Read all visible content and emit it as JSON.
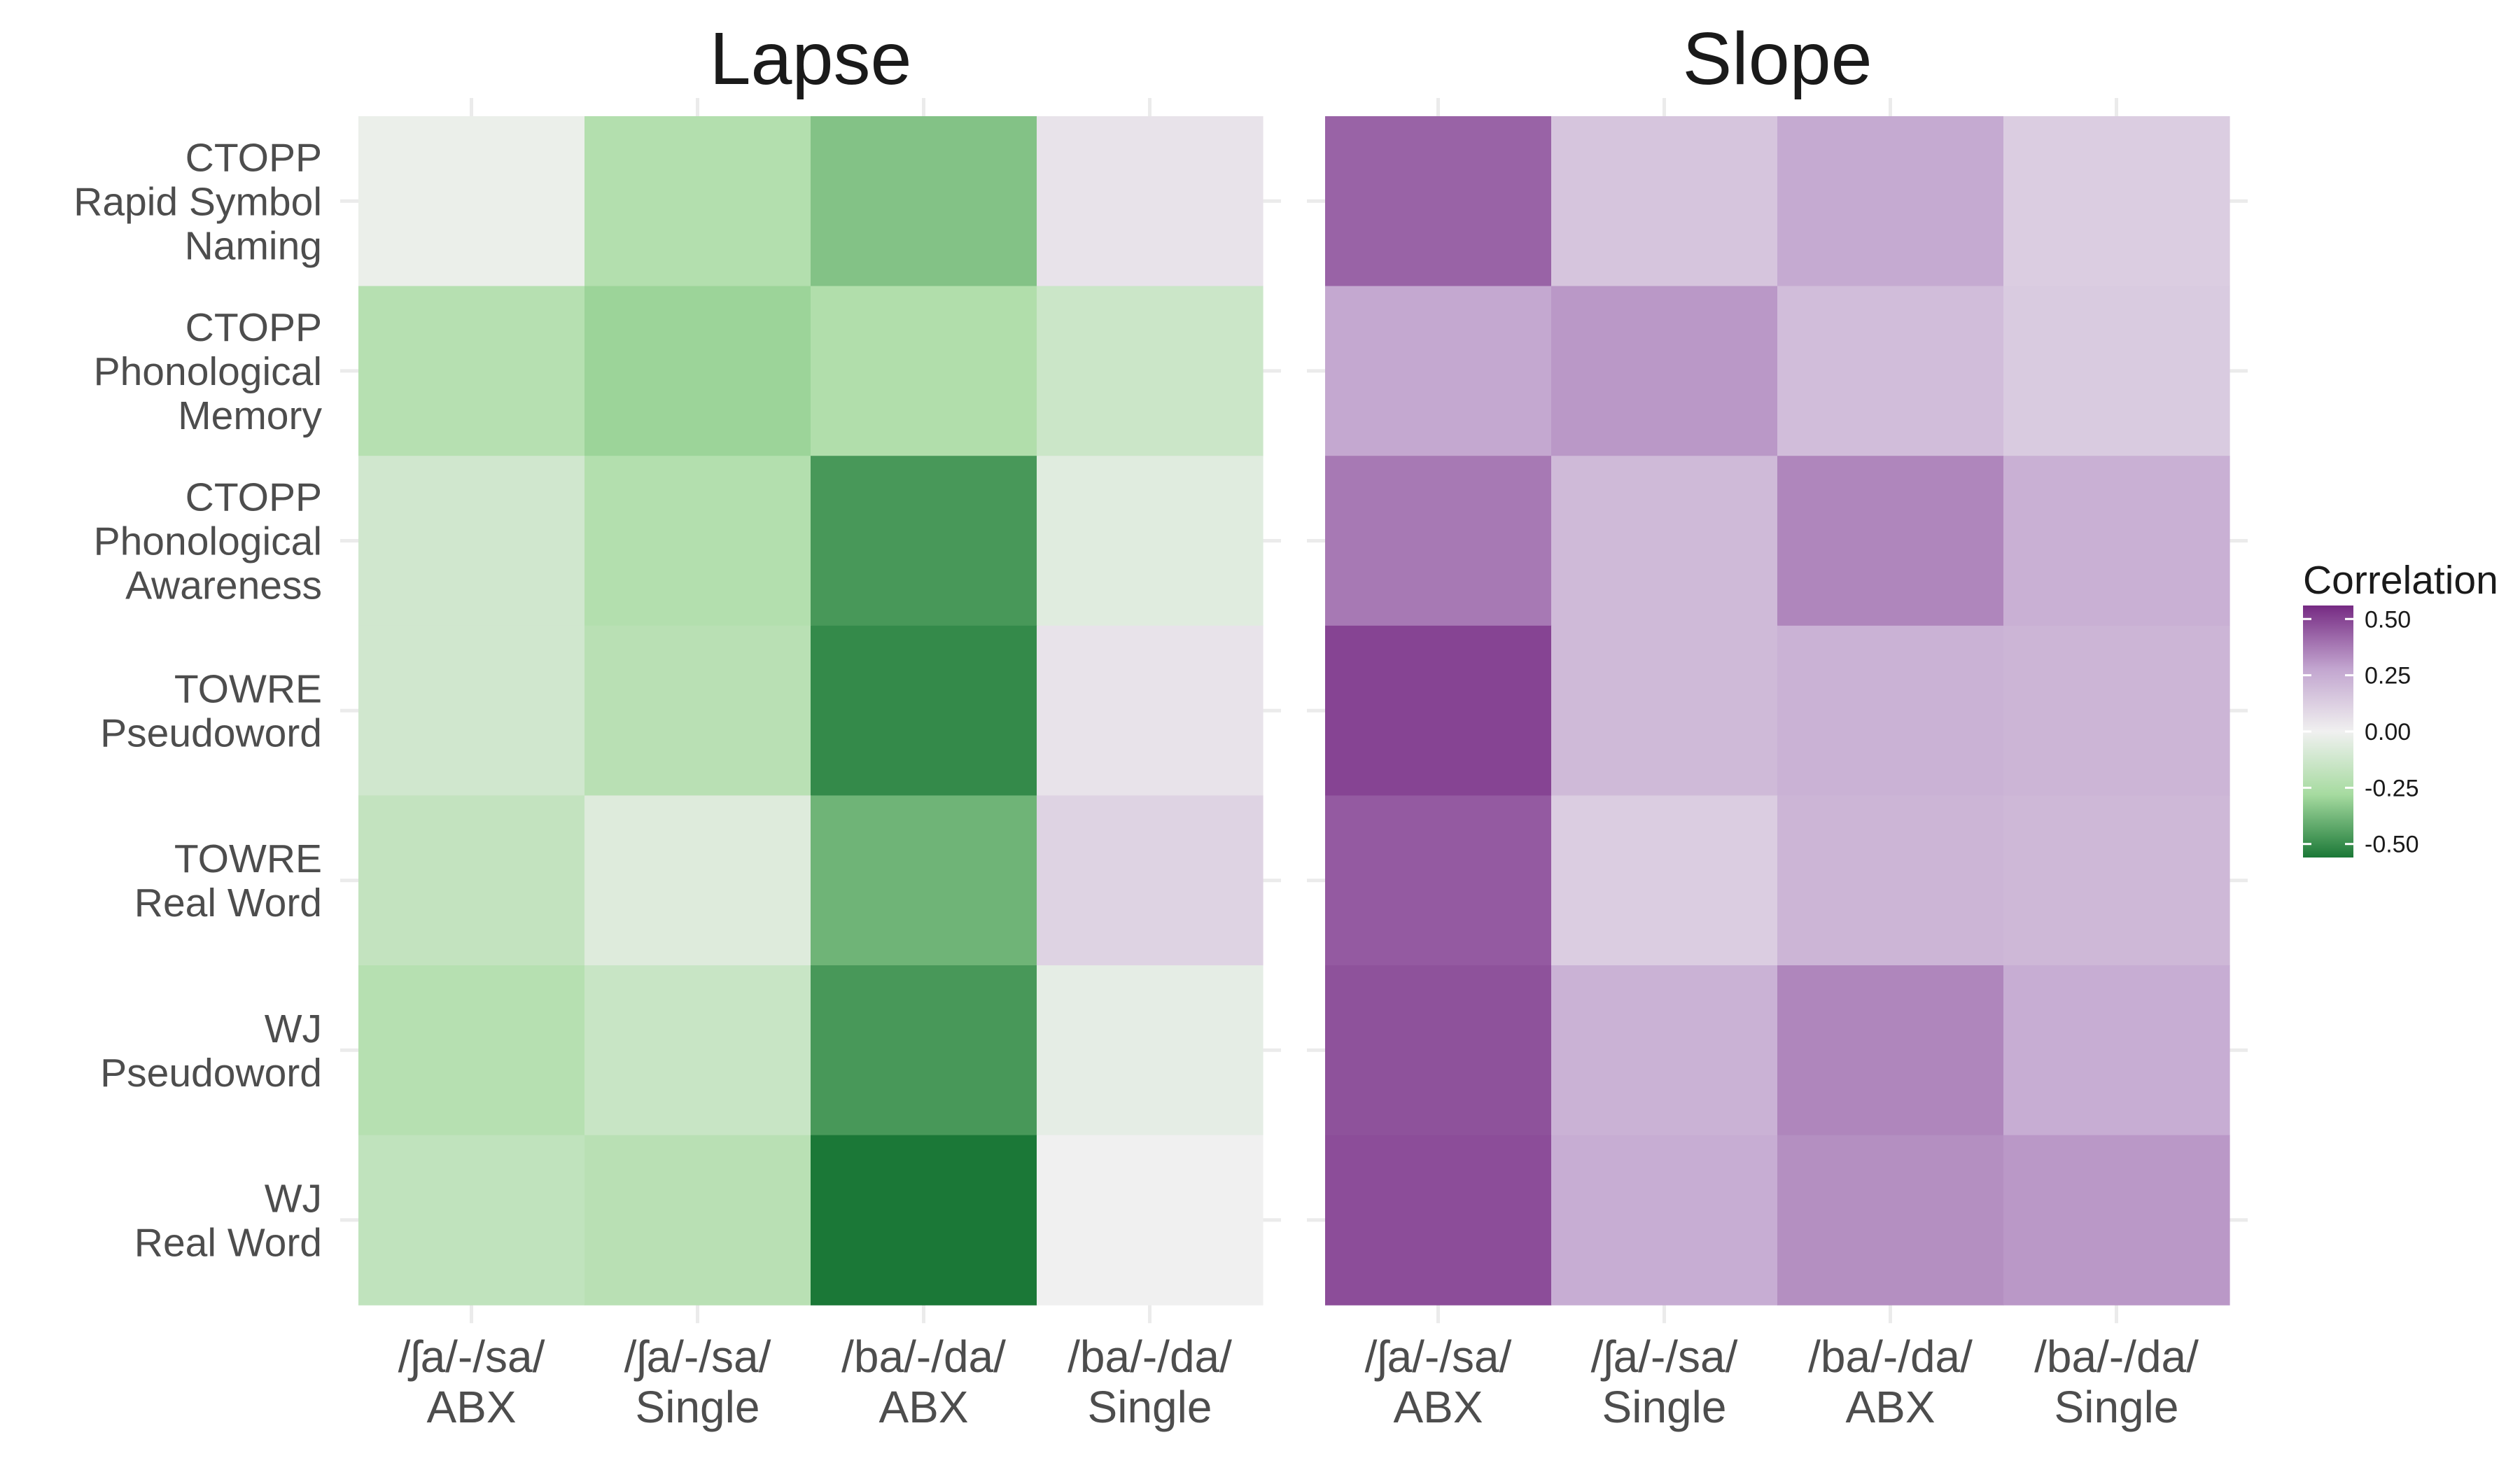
{
  "chart_data": [
    {
      "type": "heatmap",
      "title": "Lapse",
      "x_categories": [
        [
          "/ʃa/-/sa/",
          "ABX"
        ],
        [
          "/ʃa/-/sa/",
          "Single"
        ],
        [
          "/ba/-/da/",
          "ABX"
        ],
        [
          "/ba/-/da/",
          "Single"
        ]
      ],
      "y_categories": [
        [
          "CTOPP",
          "Rapid Symbol",
          "Naming"
        ],
        [
          "CTOPP",
          "Phonological",
          "Memory"
        ],
        [
          "CTOPP",
          "Phonological",
          "Awareness"
        ],
        [
          "TOWRE",
          "Pseudoword"
        ],
        [
          "TOWRE",
          "Real Word"
        ],
        [
          "WJ",
          "Pseudoword"
        ],
        [
          "WJ",
          "Real Word"
        ]
      ],
      "values": [
        [
          -0.02,
          -0.23,
          -0.35,
          0.05
        ],
        [
          -0.22,
          -0.3,
          -0.24,
          -0.14
        ],
        [
          -0.12,
          -0.23,
          -0.47,
          -0.06
        ],
        [
          -0.12,
          -0.21,
          -0.51,
          0.05
        ],
        [
          -0.17,
          -0.07,
          -0.39,
          0.11
        ],
        [
          -0.22,
          -0.15,
          -0.47,
          -0.04
        ],
        [
          -0.18,
          -0.21,
          -0.56,
          0.0
        ]
      ]
    },
    {
      "type": "heatmap",
      "title": "Slope",
      "x_categories": [
        [
          "/ʃa/-/sa/",
          "ABX"
        ],
        [
          "/ʃa/-/sa/",
          "Single"
        ],
        [
          "/ba/-/da/",
          "ABX"
        ],
        [
          "/ba/-/da/",
          "Single"
        ]
      ],
      "y_categories": [
        [
          "CTOPP",
          "Rapid Symbol",
          "Naming"
        ],
        [
          "CTOPP",
          "Phonological",
          "Memory"
        ],
        [
          "CTOPP",
          "Phonological",
          "Awareness"
        ],
        [
          "TOWRE",
          "Pseudoword"
        ],
        [
          "TOWRE",
          "Real Word"
        ],
        [
          "WJ",
          "Pseudoword"
        ],
        [
          "WJ",
          "Real Word"
        ]
      ],
      "values": [
        [
          0.43,
          0.16,
          0.26,
          0.13
        ],
        [
          0.27,
          0.31,
          0.19,
          0.14
        ],
        [
          0.38,
          0.2,
          0.35,
          0.24
        ],
        [
          0.5,
          0.2,
          0.23,
          0.22
        ],
        [
          0.45,
          0.13,
          0.22,
          0.21
        ],
        [
          0.47,
          0.23,
          0.35,
          0.25
        ],
        [
          0.48,
          0.25,
          0.33,
          0.31
        ]
      ]
    }
  ],
  "legend": {
    "title": "Correlation",
    "ticks": [
      0.5,
      0.25,
      0.0,
      -0.25,
      -0.5
    ],
    "tick_labels": [
      "0.50",
      "0.25",
      "0.00",
      "-0.25",
      "-0.50"
    ],
    "range": [
      -0.56,
      0.56
    ],
    "position": "right"
  },
  "colors": {
    "negative_high": "#1b7837",
    "negative_mid": "#a6dba0",
    "neutral": "#f0f0f0",
    "positive_mid": "#c2a5cf",
    "positive_high": "#762a83"
  }
}
